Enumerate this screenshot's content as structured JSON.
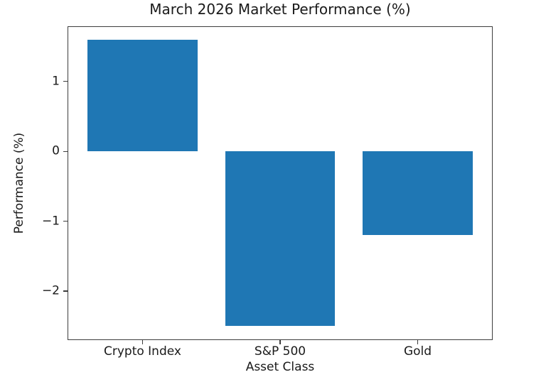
{
  "chart_data": {
    "type": "bar",
    "title": "March 2026 Market Performance (%)",
    "xlabel": "Asset Class",
    "ylabel": "Performance (%)",
    "categories": [
      "Crypto Index",
      "S&P 500",
      "Gold"
    ],
    "values": [
      1.6,
      -2.5,
      -1.2
    ],
    "bar_color": "#1f77b4",
    "bar_width": 0.8,
    "ylim": [
      -2.69,
      1.78
    ],
    "xlim": [
      -0.54,
      2.54
    ],
    "yticks": [
      {
        "value": 1,
        "label": "1"
      },
      {
        "value": 0,
        "label": "0"
      },
      {
        "value": -1,
        "label": "−1"
      },
      {
        "value": -2,
        "label": "−2"
      }
    ],
    "grid": false,
    "legend": "none"
  }
}
